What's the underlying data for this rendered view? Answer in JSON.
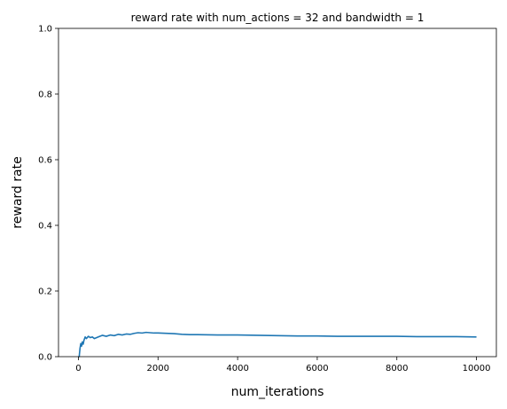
{
  "chart_data": {
    "type": "line",
    "title": "reward rate with num_actions = 32 and bandwidth = 1",
    "xlabel": "num_iterations",
    "ylabel": "reward rate",
    "xlim": [
      -500,
      10500
    ],
    "ylim": [
      0,
      1
    ],
    "x_ticks": [
      0,
      2000,
      4000,
      6000,
      8000,
      10000
    ],
    "y_ticks": [
      0.0,
      0.2,
      0.4,
      0.6,
      0.8,
      1.0
    ],
    "x_tick_labels": [
      "0",
      "2000",
      "4000",
      "6000",
      "8000",
      "10000"
    ],
    "y_tick_labels": [
      "0.0",
      "0.2",
      "0.4",
      "0.6",
      "0.8",
      "1.0"
    ],
    "grid": false,
    "series": [
      {
        "color": "#1f77b4",
        "x": [
          1,
          20,
          40,
          60,
          80,
          100,
          120,
          140,
          170,
          200,
          250,
          300,
          350,
          400,
          500,
          600,
          700,
          800,
          900,
          1000,
          1100,
          1200,
          1300,
          1400,
          1500,
          1600,
          1700,
          1800,
          1900,
          2000,
          2200,
          2400,
          2600,
          2800,
          3000,
          3500,
          4000,
          4500,
          5000,
          5500,
          6000,
          6500,
          7000,
          7500,
          8000,
          8500,
          9000,
          9500,
          10000
        ],
        "y": [
          0.0,
          0.0,
          0.025,
          0.04,
          0.032,
          0.045,
          0.038,
          0.05,
          0.06,
          0.055,
          0.062,
          0.058,
          0.06,
          0.055,
          0.06,
          0.065,
          0.062,
          0.066,
          0.064,
          0.068,
          0.066,
          0.069,
          0.068,
          0.071,
          0.073,
          0.072,
          0.074,
          0.073,
          0.072,
          0.072,
          0.071,
          0.07,
          0.068,
          0.067,
          0.067,
          0.066,
          0.066,
          0.065,
          0.064,
          0.063,
          0.063,
          0.062,
          0.062,
          0.062,
          0.062,
          0.061,
          0.061,
          0.061,
          0.06
        ]
      }
    ]
  }
}
